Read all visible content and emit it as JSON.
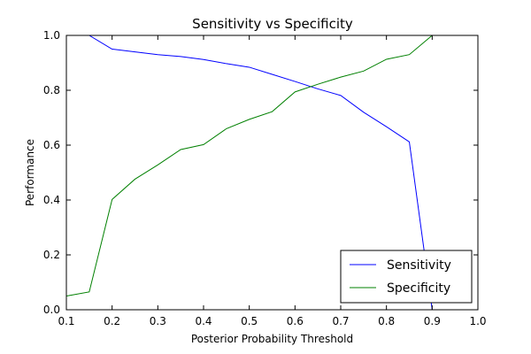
{
  "chart_data": {
    "type": "line",
    "title": "Sensitivity vs Specificity",
    "xlabel": "Posterior Probability Threshold",
    "ylabel": "Performance",
    "xlim": [
      0.1,
      1.0
    ],
    "ylim": [
      0.0,
      1.0
    ],
    "xticks": [
      "0.1",
      "0.2",
      "0.3",
      "0.4",
      "0.5",
      "0.6",
      "0.7",
      "0.8",
      "0.9",
      "1.0"
    ],
    "yticks": [
      "0.0",
      "0.2",
      "0.4",
      "0.6",
      "0.8",
      "1.0"
    ],
    "grid": false,
    "legend": "bottom-right",
    "x": [
      0.1,
      0.15,
      0.2,
      0.25,
      0.3,
      0.35,
      0.4,
      0.45,
      0.5,
      0.55,
      0.6,
      0.65,
      0.7,
      0.75,
      0.8,
      0.85,
      0.9,
      0.95
    ],
    "series": [
      {
        "name": "Sensitivity",
        "color": "#0000ff",
        "values": [
          1.0,
          1.0,
          0.95,
          0.94,
          0.93,
          0.923,
          0.912,
          0.897,
          0.884,
          0.858,
          0.832,
          0.805,
          0.781,
          0.72,
          0.667,
          0.612,
          0.0,
          0.0
        ]
      },
      {
        "name": "Specificity",
        "color": "#008000",
        "values": [
          0.05,
          0.065,
          0.402,
          0.476,
          0.528,
          0.584,
          0.602,
          0.66,
          0.694,
          0.722,
          0.794,
          0.822,
          0.848,
          0.87,
          0.913,
          0.93,
          1.0,
          1.0
        ]
      }
    ]
  }
}
